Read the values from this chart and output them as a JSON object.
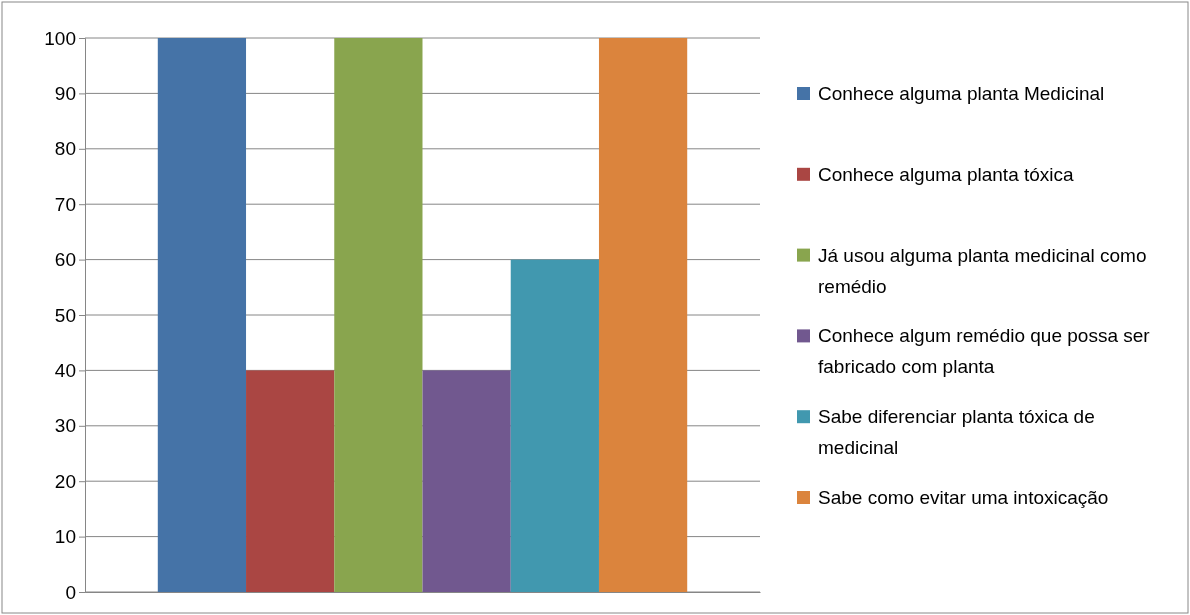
{
  "chart_data": {
    "type": "bar",
    "categories": [
      null
    ],
    "series": [
      {
        "name": "Conhece alguma planta Medicinal",
        "color": "#4573a7",
        "values": [
          100
        ]
      },
      {
        "name": "Conhece alguma planta tóxica",
        "color": "#aa4643",
        "values": [
          40
        ]
      },
      {
        "name": "Já usou alguma planta medicinal como remédio",
        "color": "#89a54e",
        "values": [
          100
        ]
      },
      {
        "name": "Conhece algum remédio que possa ser fabricado com planta",
        "color": "#71588f",
        "values": [
          40
        ]
      },
      {
        "name": "Sabe diferenciar planta tóxica de medicinal",
        "color": "#4198af",
        "values": [
          60
        ]
      },
      {
        "name": "Sabe como evitar uma intoxicação",
        "color": "#db843d",
        "values": [
          100
        ]
      }
    ],
    "ylim": [
      0,
      100
    ],
    "yticks": [
      0,
      10,
      20,
      30,
      40,
      50,
      60,
      70,
      80,
      90,
      100
    ],
    "grid": "y",
    "legend": "right"
  }
}
